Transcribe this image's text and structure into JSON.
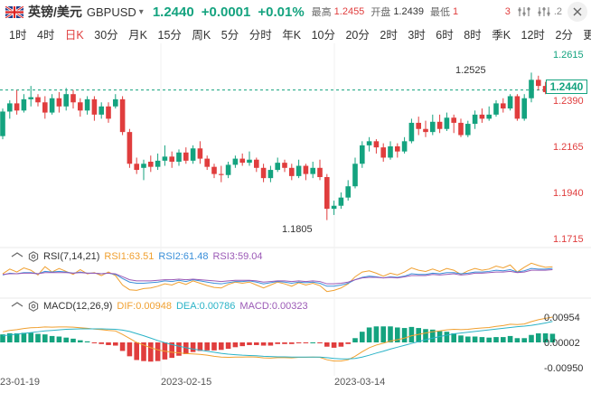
{
  "header": {
    "pair_cn": "英镑/美元",
    "pair_code": "GBPUSD",
    "price": "1.2440",
    "change": "+0.0001",
    "change_pct": "+0.01%",
    "high_label": "最高",
    "high_value": "1.2455",
    "open_label": "开盘",
    "open_value": "1.2439",
    "low_label": "最低",
    "low_value": "1",
    "trail": "3",
    "trail2": ".2"
  },
  "tabs": [
    "1时",
    "4时",
    "日K",
    "30分",
    "月K",
    "15分",
    "周K",
    "5分",
    "分时",
    "年K",
    "10分",
    "20分",
    "2时",
    "3时",
    "6时",
    "8时",
    "季K",
    "12时",
    "2分",
    "更多"
  ],
  "active_tab": "日K",
  "main_chart": {
    "price_labels": [
      "1.2615",
      "1.2390",
      "1.2165",
      "1.1940",
      "1.1715"
    ],
    "current_price_label": "1.2440",
    "high_marker": "1.2525",
    "low_marker": "1.1805"
  },
  "rsi": {
    "name": "RSI(7,14,21)",
    "rsi1": "RSI1:63.51",
    "rsi2": "RSI2:61.48",
    "rsi3": "RSI3:59.04"
  },
  "macd": {
    "name": "MACD(12,26,9)",
    "dif": "DIF:0.00948",
    "dea": "DEA:0.00786",
    "macd": "MACD:0.00323",
    "axis_labels": [
      "0.00954",
      "0.00002",
      "-0.00950"
    ]
  },
  "x_dates": [
    "23-01-19",
    "2023-02-15",
    "2023-03-14"
  ],
  "colors": {
    "up": "#14a37f",
    "down": "#e03d3d",
    "rsi1": "#f0a030",
    "rsi2": "#3a8fd9",
    "rsi3": "#9b59b6",
    "dif": "#f0a030",
    "dea": "#2ab3c7"
  },
  "chart_data": {
    "type": "candlestick",
    "y_range": [
      1.1715,
      1.2615
    ],
    "candles": [
      [
        1.2215,
        1.2335,
        1.22,
        1.235
      ],
      [
        1.2335,
        1.2375,
        1.23,
        1.239
      ],
      [
        1.2375,
        1.234,
        1.232,
        1.244
      ],
      [
        1.234,
        1.2395,
        1.233,
        1.242
      ],
      [
        1.2395,
        1.2405,
        1.236,
        1.246
      ],
      [
        1.2405,
        1.238,
        1.236,
        1.242
      ],
      [
        1.238,
        1.233,
        1.23,
        1.241
      ],
      [
        1.233,
        1.24,
        1.232,
        1.242
      ],
      [
        1.24,
        1.236,
        1.233,
        1.243
      ],
      [
        1.236,
        1.242,
        1.234,
        1.245
      ],
      [
        1.242,
        1.238,
        1.235,
        1.244
      ],
      [
        1.238,
        1.234,
        1.231,
        1.24
      ],
      [
        1.234,
        1.2395,
        1.232,
        1.241
      ],
      [
        1.2395,
        1.232,
        1.229,
        1.241
      ],
      [
        1.232,
        1.236,
        1.23,
        1.238
      ],
      [
        1.236,
        1.23,
        1.228,
        1.238
      ],
      [
        1.236,
        1.2395,
        1.235,
        1.242
      ],
      [
        1.2395,
        1.2235,
        1.222,
        1.241
      ],
      [
        1.2235,
        1.208,
        1.206,
        1.225
      ],
      [
        1.208,
        1.205,
        1.203,
        1.211
      ],
      [
        1.206,
        1.208,
        1.2,
        1.21
      ],
      [
        1.209,
        1.2065,
        1.204,
        1.212
      ],
      [
        1.2065,
        1.2095,
        1.205,
        1.213
      ],
      [
        1.2095,
        1.2115,
        1.207,
        1.217
      ],
      [
        1.2115,
        1.209,
        1.206,
        1.214
      ],
      [
        1.209,
        1.2135,
        1.207,
        1.215
      ],
      [
        1.2135,
        1.2095,
        1.208,
        1.216
      ],
      [
        1.2095,
        1.2155,
        1.208,
        1.217
      ],
      [
        1.2155,
        1.2105,
        1.208,
        1.219
      ],
      [
        1.2105,
        1.2065,
        1.205,
        1.212
      ],
      [
        1.2065,
        1.203,
        1.201,
        1.208
      ],
      [
        1.203,
        1.2025,
        1.199,
        1.207
      ],
      [
        1.2025,
        1.2075,
        1.201,
        1.209
      ],
      [
        1.2075,
        1.2105,
        1.206,
        1.212
      ],
      [
        1.2105,
        1.2085,
        1.207,
        1.213
      ],
      [
        1.2085,
        1.21,
        1.207,
        1.214
      ],
      [
        1.21,
        1.206,
        1.204,
        1.211
      ],
      [
        1.206,
        1.201,
        1.199,
        1.208
      ],
      [
        1.201,
        1.205,
        1.199,
        1.207
      ],
      [
        1.205,
        1.2085,
        1.204,
        1.211
      ],
      [
        1.2085,
        1.206,
        1.204,
        1.21
      ],
      [
        1.206,
        1.202,
        1.2,
        1.208
      ],
      [
        1.202,
        1.207,
        1.201,
        1.21
      ],
      [
        1.207,
        1.203,
        1.2,
        1.208
      ],
      [
        1.203,
        1.206,
        1.201,
        1.209
      ],
      [
        1.206,
        1.2015,
        1.2,
        1.21
      ],
      [
        1.2015,
        1.186,
        1.1805,
        1.203
      ],
      [
        1.186,
        1.1875,
        1.183,
        1.19
      ],
      [
        1.1875,
        1.1915,
        1.186,
        1.194
      ],
      [
        1.1915,
        1.197,
        1.19,
        1.2
      ],
      [
        1.197,
        1.208,
        1.196,
        1.211
      ],
      [
        1.208,
        1.217,
        1.206,
        1.219
      ],
      [
        1.217,
        1.219,
        1.214,
        1.221
      ],
      [
        1.219,
        1.216,
        1.213,
        1.22
      ],
      [
        1.216,
        1.211,
        1.209,
        1.218
      ],
      [
        1.211,
        1.2165,
        1.21,
        1.219
      ],
      [
        1.2165,
        1.214,
        1.211,
        1.218
      ],
      [
        1.214,
        1.219,
        1.213,
        1.221
      ],
      [
        1.219,
        1.228,
        1.218,
        1.23
      ],
      [
        1.228,
        1.225,
        1.222,
        1.231
      ],
      [
        1.225,
        1.2235,
        1.221,
        1.229
      ],
      [
        1.2235,
        1.2285,
        1.222,
        1.232
      ],
      [
        1.2285,
        1.225,
        1.223,
        1.232
      ],
      [
        1.225,
        1.2305,
        1.224,
        1.233
      ],
      [
        1.2305,
        1.228,
        1.223,
        1.232
      ],
      [
        1.228,
        1.222,
        1.221,
        1.23
      ],
      [
        1.222,
        1.2275,
        1.221,
        1.229
      ],
      [
        1.2275,
        1.232,
        1.225,
        1.234
      ],
      [
        1.232,
        1.23,
        1.228,
        1.235
      ],
      [
        1.23,
        1.232,
        1.229,
        1.236
      ],
      [
        1.232,
        1.2375,
        1.231,
        1.239
      ],
      [
        1.2375,
        1.235,
        1.233,
        1.24
      ],
      [
        1.235,
        1.241,
        1.234,
        1.242
      ],
      [
        1.241,
        1.23,
        1.229,
        1.242
      ],
      [
        1.23,
        1.24,
        1.229,
        1.242
      ],
      [
        1.24,
        1.249,
        1.238,
        1.2525
      ],
      [
        1.249,
        1.246,
        1.244,
        1.251
      ],
      [
        1.246,
        1.243,
        1.242,
        1.248
      ],
      [
        1.2439,
        1.244,
        1.243,
        1.2455
      ]
    ],
    "rsi1": [
      52,
      60,
      55,
      62,
      58,
      50,
      64,
      55,
      61,
      56,
      51,
      59,
      52,
      54,
      49,
      55,
      49,
      33,
      25,
      24,
      27,
      28,
      31,
      35,
      33,
      38,
      34,
      40,
      36,
      32,
      29,
      28,
      34,
      38,
      36,
      38,
      33,
      28,
      33,
      38,
      35,
      31,
      37,
      33,
      36,
      32,
      22,
      24,
      28,
      35,
      47,
      55,
      57,
      53,
      48,
      53,
      50,
      55,
      62,
      58,
      56,
      60,
      56,
      61,
      58,
      51,
      57,
      61,
      58,
      60,
      65,
      62,
      67,
      55,
      63,
      70,
      66,
      63,
      64
    ],
    "rsi2": [
      50,
      53,
      52,
      54,
      54,
      52,
      56,
      55,
      56,
      55,
      53,
      55,
      53,
      53,
      52,
      53,
      51,
      44,
      38,
      36,
      36,
      37,
      38,
      40,
      39,
      41,
      39,
      42,
      40,
      38,
      36,
      35,
      37,
      39,
      39,
      40,
      38,
      35,
      37,
      39,
      38,
      36,
      38,
      37,
      38,
      36,
      31,
      31,
      33,
      36,
      42,
      46,
      48,
      47,
      45,
      47,
      46,
      48,
      52,
      51,
      51,
      53,
      52,
      54,
      54,
      52,
      53,
      55,
      55,
      56,
      58,
      57,
      59,
      55,
      57,
      61,
      60,
      60,
      61
    ],
    "rsi3": [
      51,
      52,
      52,
      53,
      53,
      52,
      54,
      54,
      54,
      54,
      53,
      54,
      53,
      53,
      52,
      53,
      52,
      47,
      42,
      40,
      40,
      40,
      41,
      42,
      42,
      43,
      42,
      43,
      42,
      41,
      40,
      39,
      40,
      41,
      41,
      41,
      40,
      38,
      39,
      40,
      40,
      39,
      40,
      39,
      40,
      39,
      35,
      35,
      36,
      38,
      42,
      45,
      46,
      46,
      45,
      46,
      45,
      47,
      49,
      49,
      49,
      51,
      50,
      51,
      52,
      50,
      51,
      53,
      53,
      54,
      55,
      55,
      56,
      54,
      55,
      58,
      58,
      58,
      59
    ],
    "dif": [
      0.004,
      0.0045,
      0.0048,
      0.0052,
      0.0055,
      0.0056,
      0.0058,
      0.0057,
      0.0058,
      0.0058,
      0.0057,
      0.0055,
      0.0053,
      0.005,
      0.0048,
      0.0045,
      0.0043,
      0.003,
      0.0015,
      0.0,
      -0.001,
      -0.002,
      -0.0028,
      -0.0033,
      -0.0037,
      -0.0039,
      -0.0042,
      -0.0043,
      -0.0045,
      -0.0048,
      -0.0052,
      -0.0055,
      -0.0056,
      -0.0055,
      -0.0055,
      -0.0054,
      -0.0055,
      -0.0058,
      -0.0059,
      -0.0057,
      -0.0057,
      -0.0058,
      -0.0056,
      -0.0056,
      -0.0055,
      -0.0056,
      -0.0065,
      -0.007,
      -0.007,
      -0.0065,
      -0.0052,
      -0.0035,
      -0.002,
      -0.001,
      -0.0003,
      0.0005,
      0.001,
      0.0016,
      0.0025,
      0.003,
      0.0035,
      0.004,
      0.0043,
      0.0047,
      0.0049,
      0.0048,
      0.0049,
      0.0052,
      0.0054,
      0.0056,
      0.006,
      0.0063,
      0.0068,
      0.0067,
      0.0069,
      0.0078,
      0.0085,
      0.009,
      0.00948
    ],
    "dea": [
      0.0025,
      0.0028,
      0.0031,
      0.0034,
      0.0037,
      0.004,
      0.0043,
      0.0045,
      0.0047,
      0.0049,
      0.005,
      0.0051,
      0.0051,
      0.0051,
      0.0051,
      0.005,
      0.0049,
      0.0046,
      0.0041,
      0.0033,
      0.0025,
      0.0016,
      0.0007,
      -0.0001,
      -0.0008,
      -0.0014,
      -0.002,
      -0.0025,
      -0.0029,
      -0.0033,
      -0.0037,
      -0.0041,
      -0.0044,
      -0.0046,
      -0.0048,
      -0.0049,
      -0.005,
      -0.0052,
      -0.0053,
      -0.0054,
      -0.0054,
      -0.0055,
      -0.0055,
      -0.0055,
      -0.0055,
      -0.0055,
      -0.0057,
      -0.006,
      -0.0062,
      -0.0062,
      -0.006,
      -0.0055,
      -0.0048,
      -0.004,
      -0.0033,
      -0.0025,
      -0.0018,
      -0.0011,
      -0.0004,
      0.0003,
      0.001,
      0.0016,
      0.0022,
      0.0027,
      0.0032,
      0.0035,
      0.0038,
      0.0041,
      0.0044,
      0.0047,
      0.005,
      0.0053,
      0.0056,
      0.0059,
      0.0061,
      0.0064,
      0.0068,
      0.0073,
      0.00786
    ]
  }
}
